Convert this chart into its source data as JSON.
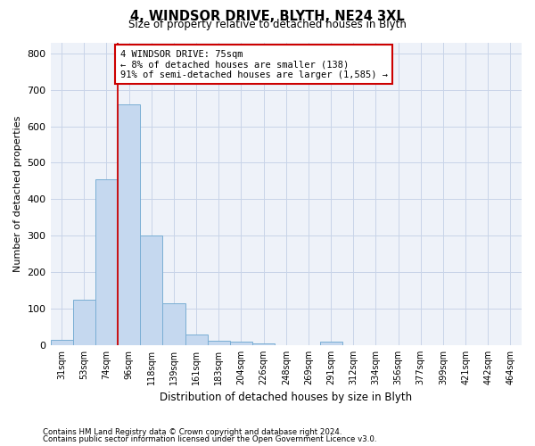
{
  "title": "4, WINDSOR DRIVE, BLYTH, NE24 3XL",
  "subtitle": "Size of property relative to detached houses in Blyth",
  "xlabel": "Distribution of detached houses by size in Blyth",
  "ylabel": "Number of detached properties",
  "footnote1": "Contains HM Land Registry data © Crown copyright and database right 2024.",
  "footnote2": "Contains public sector information licensed under the Open Government Licence v3.0.",
  "bin_labels": [
    "31sqm",
    "53sqm",
    "74sqm",
    "96sqm",
    "118sqm",
    "139sqm",
    "161sqm",
    "183sqm",
    "204sqm",
    "226sqm",
    "248sqm",
    "269sqm",
    "291sqm",
    "312sqm",
    "334sqm",
    "356sqm",
    "377sqm",
    "399sqm",
    "421sqm",
    "442sqm",
    "464sqm"
  ],
  "bar_heights": [
    15,
    125,
    455,
    660,
    300,
    115,
    30,
    12,
    10,
    5,
    0,
    0,
    10,
    0,
    0,
    0,
    0,
    0,
    0,
    0,
    0
  ],
  "bar_color": "#c5d8ef",
  "bar_edge_color": "#7aaed4",
  "property_line_x": 2.5,
  "property_line_color": "#cc0000",
  "annotation_text": "4 WINDSOR DRIVE: 75sqm\n← 8% of detached houses are smaller (138)\n91% of semi-detached houses are larger (1,585) →",
  "annotation_box_color": "#cc0000",
  "ylim": [
    0,
    830
  ],
  "yticks": [
    0,
    100,
    200,
    300,
    400,
    500,
    600,
    700,
    800
  ],
  "grid_color": "#c8d4e8",
  "background_color": "#eef2f9"
}
